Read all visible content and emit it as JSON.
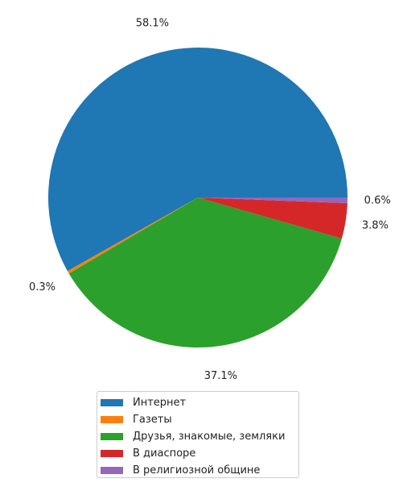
{
  "chart_data": {
    "type": "pie",
    "categories": [
      "Интернет",
      "Газеты",
      "Друзья, знакомые, земляки",
      "В диаспоре",
      "В религиозной общине"
    ],
    "values": [
      58.1,
      0.3,
      37.1,
      3.8,
      0.6
    ],
    "value_labels": [
      "58.1%",
      "0.3%",
      "37.1%",
      "3.8%",
      "0.6%"
    ],
    "colors": [
      "#1f77b4",
      "#ff7f0e",
      "#2ca02c",
      "#d62728",
      "#9467bd"
    ],
    "start_angle_deg": 0,
    "direction": "counterclockwise",
    "legend_position": "bottom-center"
  }
}
